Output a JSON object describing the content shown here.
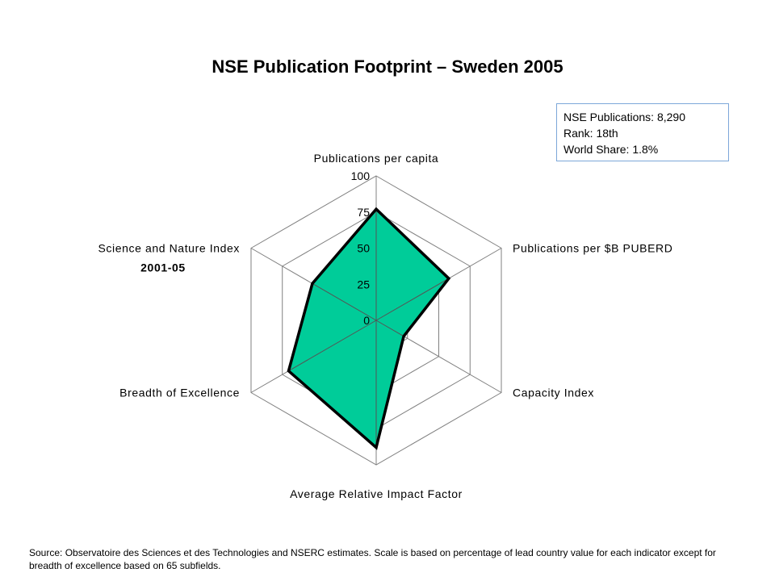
{
  "title": "NSE Publication Footprint – Sweden 2005",
  "info": {
    "publications": "NSE Publications: 8,290",
    "rank": "Rank: 18th",
    "world_share": "World Share: 1.8%"
  },
  "chart_data": {
    "type": "radar",
    "title": "NSE Publication Footprint – Sweden 2005",
    "axes": [
      "Publications per capita",
      "Publications per $B PUBERD",
      "Capacity Index",
      "Average Relative Impact Factor",
      "Breadth of Excellence",
      "Science and Nature Index"
    ],
    "axis_sublabels": {
      "Science and Nature Index": "2001-05"
    },
    "ticks": [
      "0",
      "25",
      "50",
      "75",
      "100"
    ],
    "range": [
      0,
      100
    ],
    "series": [
      {
        "values": [
          77,
          58,
          22,
          88,
          70,
          51
        ],
        "fill": "#00cc99",
        "stroke": "#000000"
      }
    ]
  },
  "source": "Source: Observatoire des Sciences et des Technologies and NSERC estimates. Scale is based on percentage of lead country value for each indicator except for breadth of excellence based on 65 subfields."
}
